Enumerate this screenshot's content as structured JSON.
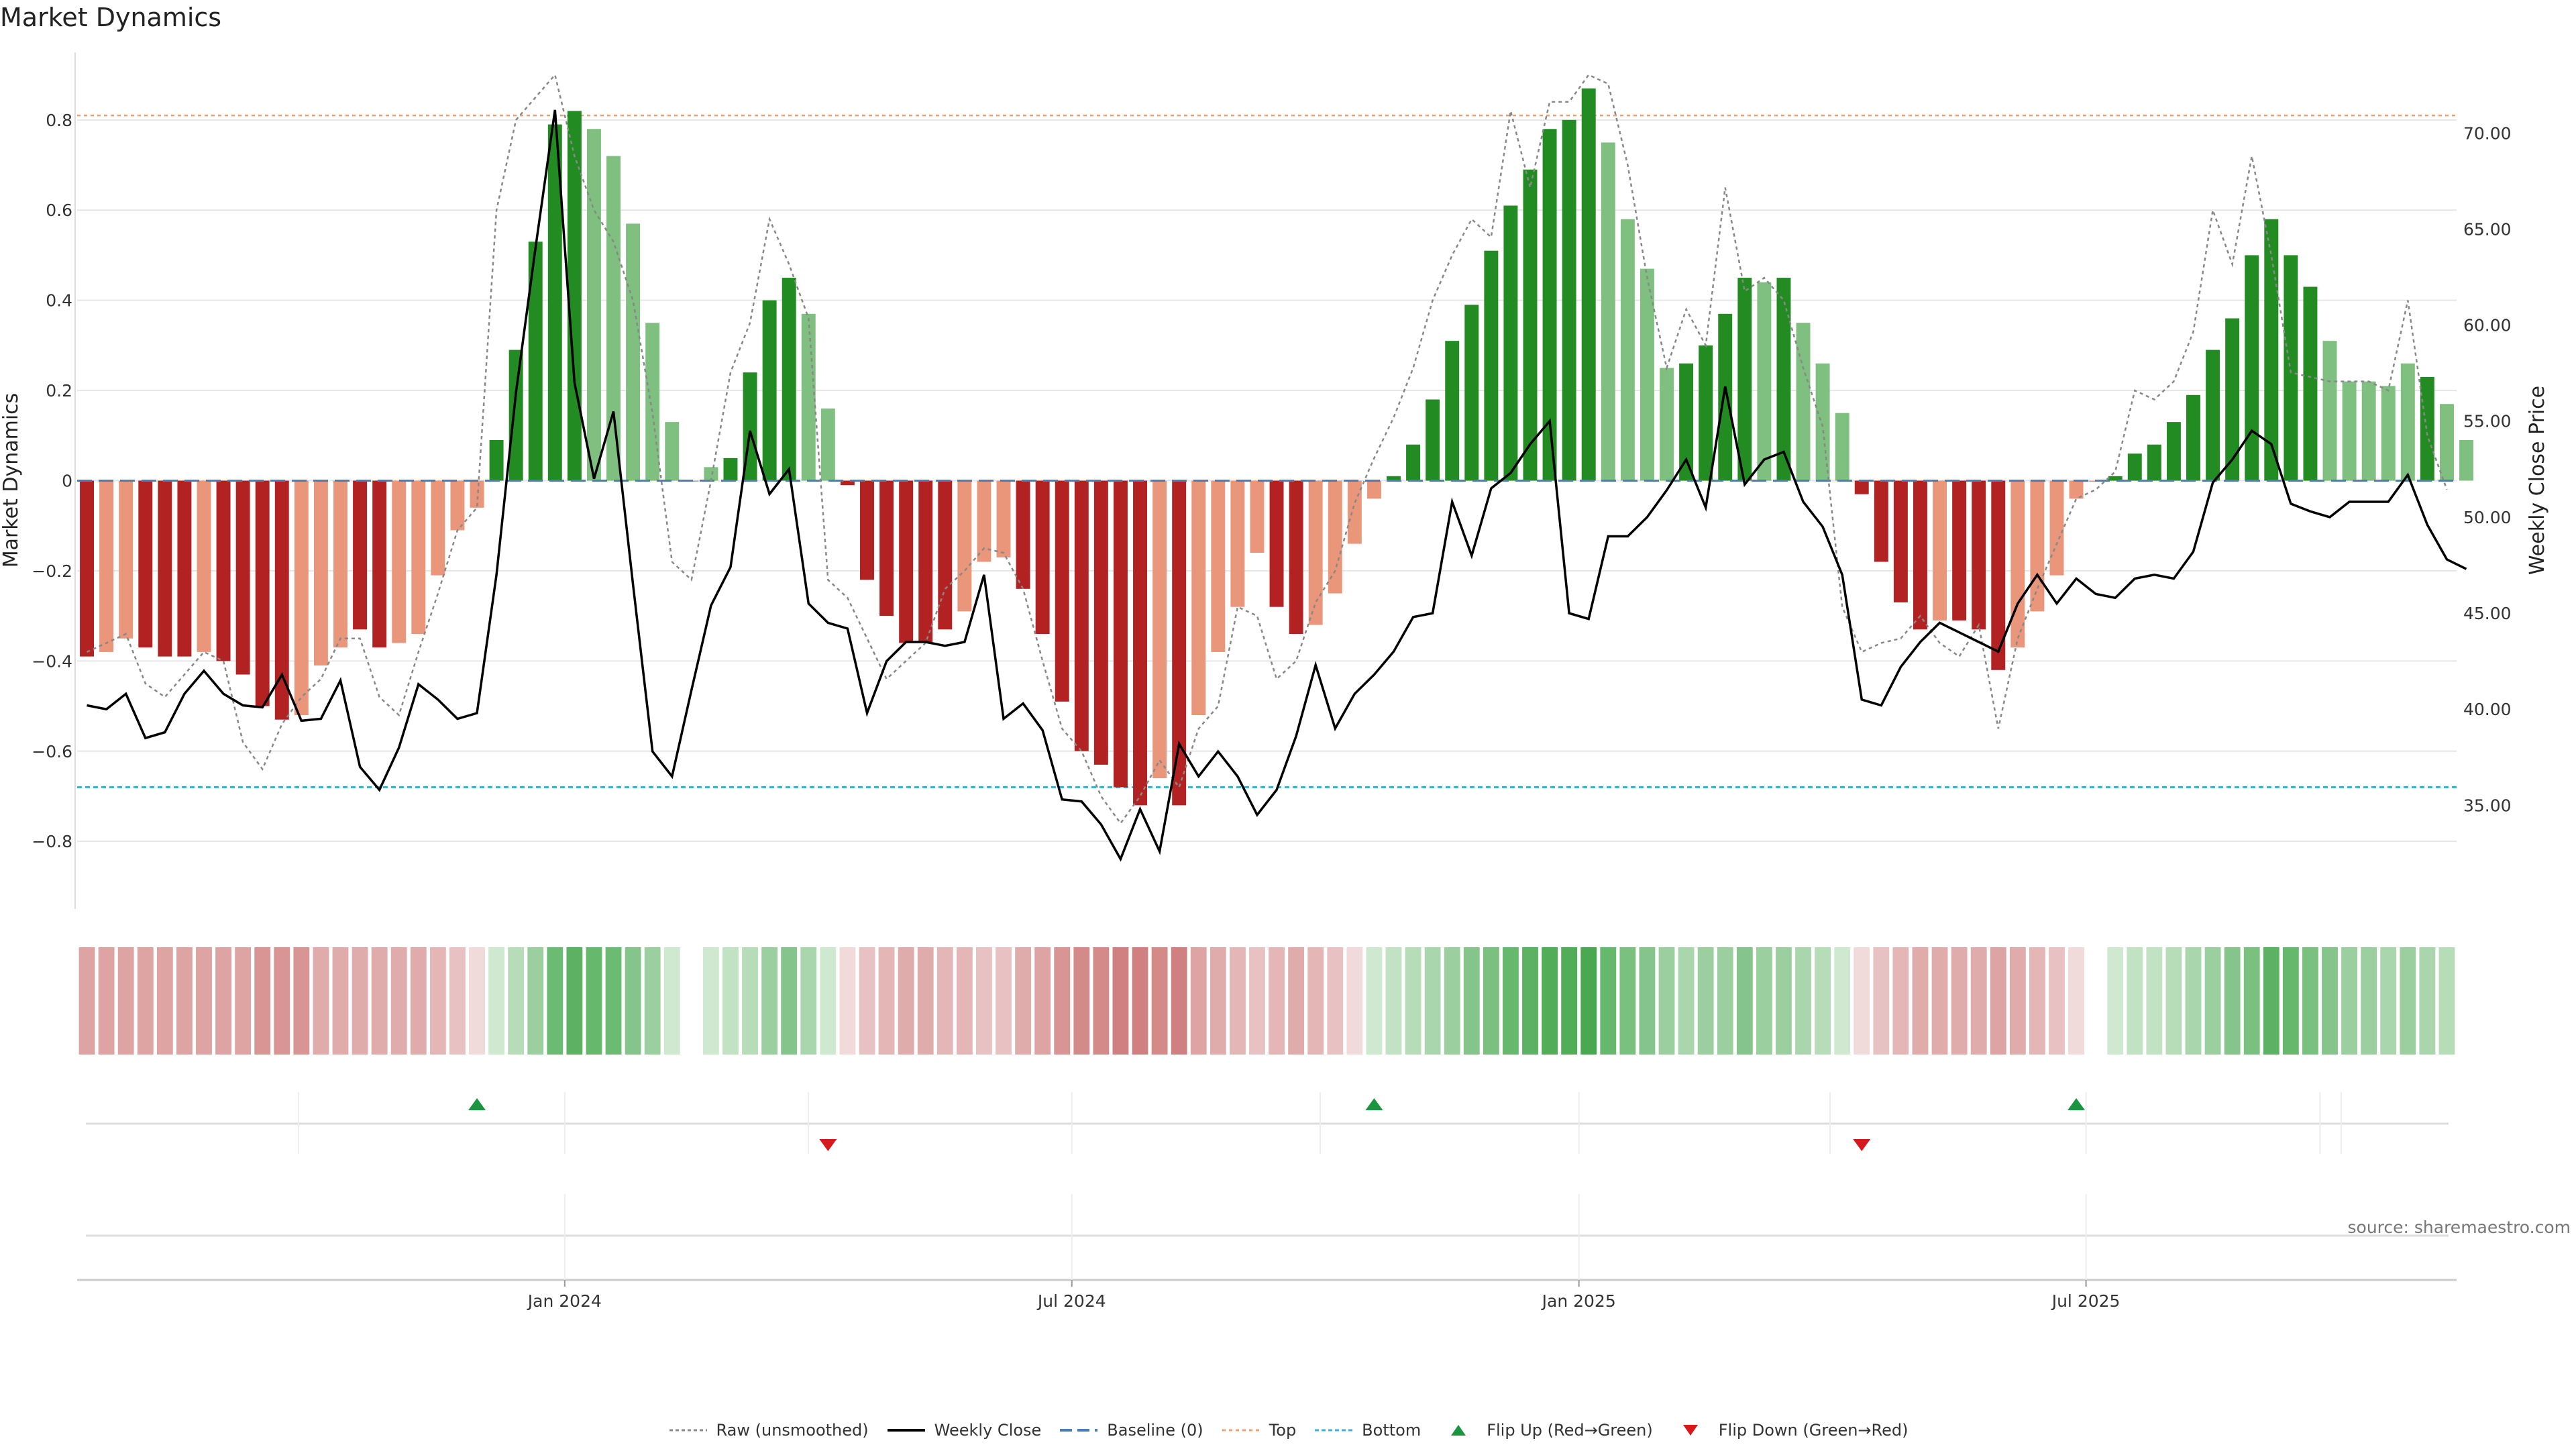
{
  "title": "Market Dynamics",
  "source": "source: sharemaestro.com",
  "chart_data": {
    "type": "bar",
    "left_axis_label": "Market Dynamics",
    "right_axis_label": "Weekly Close Price",
    "left_ticks": [
      0.8,
      0.6,
      0.4,
      0.2,
      0,
      -0.2,
      -0.4,
      -0.6,
      -0.8
    ],
    "left_tick_labels": [
      "0.8",
      "0.6",
      "0.4",
      "0.2",
      "0",
      "−0.2",
      "−0.4",
      "−0.6",
      "−0.8"
    ],
    "left_ylim": [
      -0.95,
      0.95
    ],
    "right_ticks": [
      70,
      65,
      60,
      55,
      50,
      45,
      40,
      35
    ],
    "right_tick_labels": [
      "70.00",
      "65.00",
      "60.00",
      "55.00",
      "50.00",
      "45.00",
      "40.00",
      "35.00"
    ],
    "right_ylim": [
      29.6,
      74.2
    ],
    "x_ticks": [
      {
        "label": "Jan 2024",
        "index": 24.5
      },
      {
        "label": "Jul 2024",
        "index": 50.5
      },
      {
        "label": "Jan 2025",
        "index": 76.5
      },
      {
        "label": "Jul 2025",
        "index": 102.5
      }
    ],
    "top_level": 0.81,
    "bottom_level": -0.68,
    "baseline": 0,
    "weeks": 122,
    "values": [
      -0.39,
      -0.38,
      -0.35,
      -0.37,
      -0.39,
      -0.39,
      -0.38,
      -0.4,
      -0.43,
      -0.5,
      -0.53,
      -0.52,
      -0.41,
      -0.37,
      -0.33,
      -0.37,
      -0.36,
      -0.34,
      -0.21,
      -0.11,
      -0.06,
      0.09,
      0.29,
      0.53,
      0.79,
      0.82,
      0.78,
      0.72,
      0.57,
      0.35,
      0.13,
      0.0,
      0.03,
      0.05,
      0.24,
      0.4,
      0.45,
      0.37,
      0.16,
      -0.01,
      -0.22,
      -0.3,
      -0.36,
      -0.36,
      -0.33,
      -0.29,
      -0.18,
      -0.17,
      -0.24,
      -0.34,
      -0.49,
      -0.6,
      -0.63,
      -0.68,
      -0.72,
      -0.66,
      -0.72,
      -0.52,
      -0.38,
      -0.28,
      -0.16,
      -0.28,
      -0.34,
      -0.32,
      -0.25,
      -0.14,
      -0.04,
      0.01,
      0.08,
      0.18,
      0.31,
      0.39,
      0.51,
      0.61,
      0.69,
      0.78,
      0.8,
      0.87,
      0.75,
      0.58,
      0.47,
      0.25,
      0.26,
      0.3,
      0.37,
      0.45,
      0.44,
      0.45,
      0.35,
      0.26,
      0.15,
      -0.03,
      -0.18,
      -0.27,
      -0.33,
      -0.31,
      -0.31,
      -0.33,
      -0.42,
      -0.37,
      -0.29,
      -0.21,
      -0.04,
      0.0,
      0.01,
      0.06,
      0.08,
      0.13,
      0.19,
      0.29,
      0.36,
      0.5,
      0.58,
      0.5,
      0.43,
      0.31,
      0.22,
      0.22,
      0.21,
      0.26,
      0.23,
      0.17,
      0.09
    ],
    "bar_colors": [
      "d",
      "l",
      "l",
      "d",
      "d",
      "d",
      "l",
      "d",
      "d",
      "d",
      "d",
      "l",
      "l",
      "l",
      "d",
      "d",
      "l",
      "l",
      "l",
      "l",
      "l",
      "g",
      "g",
      "g",
      "g",
      "g",
      "lg",
      "lg",
      "lg",
      "lg",
      "lg",
      "lg",
      "lg",
      "g",
      "g",
      "g",
      "g",
      "lg",
      "lg",
      "d",
      "d",
      "d",
      "d",
      "d",
      "d",
      "l",
      "l",
      "l",
      "d",
      "d",
      "d",
      "d",
      "d",
      "d",
      "d",
      "l",
      "d",
      "l",
      "l",
      "l",
      "l",
      "d",
      "d",
      "l",
      "l",
      "l",
      "l",
      "g",
      "g",
      "g",
      "g",
      "g",
      "g",
      "g",
      "g",
      "g",
      "g",
      "g",
      "lg",
      "lg",
      "lg",
      "lg",
      "g",
      "g",
      "g",
      "g",
      "lg",
      "g",
      "lg",
      "lg",
      "lg",
      "d",
      "d",
      "d",
      "d",
      "l",
      "d",
      "d",
      "d",
      "l",
      "l",
      "l",
      "l",
      "l",
      "g",
      "g",
      "g",
      "g",
      "g",
      "g",
      "g",
      "g",
      "g",
      "g",
      "g",
      "lg",
      "lg",
      "lg",
      "lg",
      "lg",
      "g",
      "lg",
      "lg",
      "lg"
    ],
    "raw": [
      -0.38,
      -0.36,
      -0.34,
      -0.45,
      -0.48,
      -0.43,
      -0.38,
      -0.4,
      -0.58,
      -0.64,
      -0.54,
      -0.48,
      -0.44,
      -0.35,
      -0.35,
      -0.48,
      -0.52,
      -0.38,
      -0.25,
      -0.11,
      -0.06,
      0.6,
      0.8,
      0.85,
      0.9,
      0.72,
      0.6,
      0.53,
      0.4,
      0.15,
      -0.18,
      -0.22,
      0.0,
      0.24,
      0.35,
      0.58,
      0.48,
      0.36,
      -0.22,
      -0.26,
      -0.35,
      -0.44,
      -0.4,
      -0.36,
      -0.24,
      -0.2,
      -0.15,
      -0.16,
      -0.24,
      -0.4,
      -0.55,
      -0.6,
      -0.7,
      -0.76,
      -0.7,
      -0.62,
      -0.68,
      -0.55,
      -0.5,
      -0.28,
      -0.3,
      -0.44,
      -0.4,
      -0.27,
      -0.2,
      -0.05,
      0.05,
      0.14,
      0.25,
      0.4,
      0.5,
      0.58,
      0.54,
      0.82,
      0.65,
      0.84,
      0.84,
      0.9,
      0.88,
      0.7,
      0.45,
      0.25,
      0.38,
      0.3,
      0.65,
      0.42,
      0.45,
      0.4,
      0.25,
      0.12,
      -0.28,
      -0.38,
      -0.36,
      -0.35,
      -0.3,
      -0.36,
      -0.39,
      -0.32,
      -0.55,
      -0.35,
      -0.24,
      -0.14,
      -0.04,
      -0.02,
      0.02,
      0.2,
      0.18,
      0.22,
      0.33,
      0.6,
      0.48,
      0.72,
      0.5,
      0.24,
      0.23,
      0.22,
      0.22,
      0.22,
      0.2,
      0.4,
      0.1,
      -0.02
    ],
    "close": [
      40.2,
      40.0,
      40.8,
      38.5,
      38.8,
      40.8,
      42.0,
      40.8,
      40.2,
      40.1,
      41.8,
      39.4,
      39.5,
      41.5,
      37.0,
      35.8,
      38.0,
      41.3,
      40.5,
      39.5,
      39.8,
      47.0,
      56.5,
      64.0,
      71.2,
      57.0,
      52.0,
      55.5,
      46.5,
      37.8,
      36.5,
      41.0,
      45.4,
      47.4,
      54.5,
      51.2,
      52.5,
      45.5,
      44.5,
      44.2,
      39.8,
      42.5,
      43.5,
      43.5,
      43.3,
      43.5,
      47.0,
      39.5,
      40.3,
      38.9,
      35.3,
      35.2,
      34.0,
      32.2,
      34.8,
      32.6,
      38.2,
      36.5,
      37.8,
      36.5,
      34.5,
      35.8,
      38.6,
      42.3,
      39.0,
      40.8,
      41.8,
      43.0,
      44.8,
      45.0,
      50.8,
      48.0,
      51.5,
      52.3,
      53.8,
      55.0,
      45.0,
      44.7,
      49.0,
      49.0,
      50.0,
      51.4,
      53.0,
      50.5,
      56.8,
      51.7,
      53.0,
      53.4,
      50.8,
      49.5,
      47.0,
      40.5,
      40.2,
      42.2,
      43.5,
      44.5,
      44.0,
      43.5,
      43.0,
      45.5,
      47.0,
      45.5,
      46.8,
      46.0,
      45.8,
      46.8,
      47.0,
      46.8,
      48.2,
      51.8,
      53.0,
      54.5,
      53.8,
      50.7,
      50.3,
      50.0,
      50.8,
      50.8,
      50.8,
      52.2,
      49.6,
      47.8,
      47.3
    ],
    "strip_colors": [
      "#dea3a3",
      "#dea3a3",
      "#dea3a3",
      "#dea3a3",
      "#dea3a3",
      "#dea3a3",
      "#dea3a3",
      "#dea3a3",
      "#dea3a3",
      "#d99494",
      "#d99494",
      "#d99494",
      "#e0abab",
      "#e0abab",
      "#e0abab",
      "#e0abab",
      "#e0abab",
      "#e0abab",
      "#e4b6b6",
      "#e8c2c2",
      "#f0dada",
      "#cfe8d0",
      "#b6dcb8",
      "#9ccf9f",
      "#6bbb72",
      "#5cb262",
      "#66b86c",
      "#6bbb72",
      "#85c48a",
      "#9ccf9f",
      "#cfe8d0",
      "#ffffff",
      "#cfe8d0",
      "#c2e2c4",
      "#b6dcb8",
      "#9ccf9f",
      "#85c48a",
      "#a9d6ac",
      "#cfe8d0",
      "#f0dada",
      "#e8c2c2",
      "#e4b6b6",
      "#e0abab",
      "#e0abab",
      "#e4b6b6",
      "#e4b6b6",
      "#e8c2c2",
      "#e8c2c2",
      "#e0abab",
      "#dea3a3",
      "#d99494",
      "#d58a8a",
      "#d58a8a",
      "#d08080",
      "#d08080",
      "#d58a8a",
      "#d08080",
      "#dea3a3",
      "#e0abab",
      "#e4b6b6",
      "#e8c2c2",
      "#e4b6b6",
      "#e0abab",
      "#e4b6b6",
      "#e8c2c2",
      "#f0dada",
      "#cfe8d0",
      "#c2e2c4",
      "#b6dcb8",
      "#a9d6ac",
      "#9ccf9f",
      "#85c48a",
      "#7ac07f",
      "#66b86c",
      "#5cb262",
      "#52ad59",
      "#52ad59",
      "#4aa850",
      "#66b86c",
      "#7ac07f",
      "#85c48a",
      "#9ccf9f",
      "#a9d6ac",
      "#9ccf9f",
      "#9ccf9f",
      "#85c48a",
      "#9ccf9f",
      "#9ccf9f",
      "#a9d6ac",
      "#b6dcb8",
      "#cfe8d0",
      "#f0dada",
      "#e8c2c2",
      "#e4b6b6",
      "#e0abab",
      "#e0abab",
      "#e0abab",
      "#e0abab",
      "#dea3a3",
      "#e0abab",
      "#e4b6b6",
      "#e8c2c2",
      "#f0dada",
      "#ffffff",
      "#cfe8d0",
      "#c2e2c4",
      "#c2e2c4",
      "#b6dcb8",
      "#a9d6ac",
      "#9ccf9f",
      "#85c48a",
      "#7ac07f",
      "#5cb262",
      "#66b86c",
      "#7ac07f",
      "#85c48a",
      "#9ccf9f",
      "#9ccf9f",
      "#a9d6ac",
      "#9ccf9f",
      "#a9d6ac",
      "#b6dcb8"
    ],
    "flip_up_indices": [
      20,
      66,
      102
    ],
    "flip_down_indices": [
      38,
      91
    ],
    "colors": {
      "dark_red": "#b22222",
      "light_red": "#e9967a",
      "dark_green": "#228b22",
      "light_green": "#7fbf7f",
      "raw_line": "#888888",
      "close_line": "#000000",
      "baseline": "#4a7fb5",
      "top": "#f0a070",
      "bottom": "#3fb0d8",
      "flip_up": "#1a9641",
      "flip_down": "#d7191c"
    },
    "legend": [
      {
        "key": "raw",
        "label": "Raw (unsmoothed)"
      },
      {
        "key": "close",
        "label": "Weekly Close"
      },
      {
        "key": "baseline",
        "label": "Baseline (0)"
      },
      {
        "key": "top",
        "label": "Top"
      },
      {
        "key": "bottom",
        "label": "Bottom"
      },
      {
        "key": "flipup",
        "label": "Flip Up (Red→Green)"
      },
      {
        "key": "flipdown",
        "label": "Flip Down (Green→Red)"
      }
    ]
  }
}
